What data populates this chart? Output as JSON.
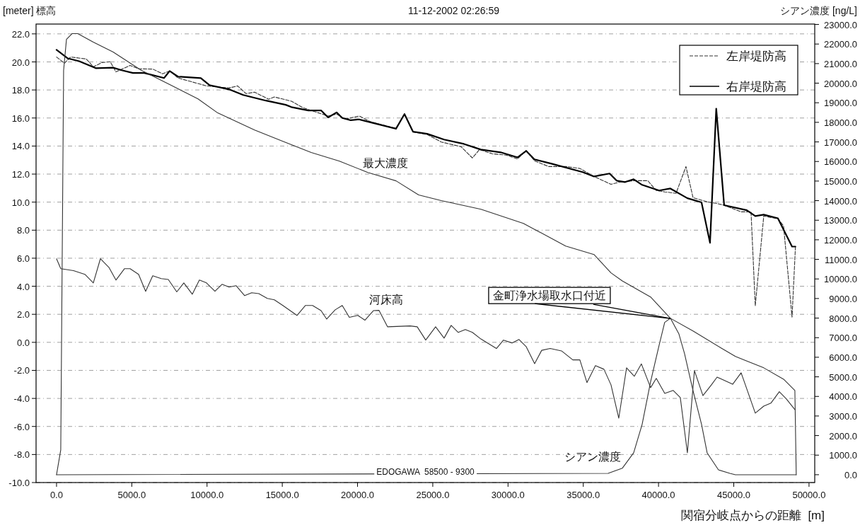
{
  "chart_data": {
    "type": "line",
    "title": "11-12-2002 02:26:59",
    "xlabel": "関宿分岐点からの距離  [m]",
    "ylabel": "[meter] 標高",
    "y2label": "シアン濃度 [ng/L]",
    "xlim": [
      -1360,
      50380
    ],
    "ylim": [
      -10,
      22.7
    ],
    "y2lim": [
      -400,
      23020
    ],
    "xticks": [
      {
        "value": 0,
        "label": "0.0"
      },
      {
        "value": 5000,
        "label": "5000.0"
      },
      {
        "value": 10000,
        "label": "10000.0"
      },
      {
        "value": 15000,
        "label": "15000.0"
      },
      {
        "value": 20000,
        "label": "20000.0"
      },
      {
        "value": 25000,
        "label": "25000.0"
      },
      {
        "value": 30000,
        "label": "30000.0"
      },
      {
        "value": 35000,
        "label": "35000.0"
      },
      {
        "value": 40000,
        "label": "40000.0"
      },
      {
        "value": 45000,
        "label": "45000.0"
      },
      {
        "value": 50000,
        "label": "50000.0"
      }
    ],
    "yticks": [
      {
        "value": -10,
        "label": "-10.0"
      },
      {
        "value": -8,
        "label": "-8.0"
      },
      {
        "value": -6,
        "label": "-6.0"
      },
      {
        "value": -4,
        "label": "-4.0"
      },
      {
        "value": -2,
        "label": "-2.0"
      },
      {
        "value": 0,
        "label": "0.0"
      },
      {
        "value": 2,
        "label": "2.0"
      },
      {
        "value": 4,
        "label": "4.0"
      },
      {
        "value": 6,
        "label": "6.0"
      },
      {
        "value": 8,
        "label": "8.0"
      },
      {
        "value": 10,
        "label": "10.0"
      },
      {
        "value": 12,
        "label": "12.0"
      },
      {
        "value": 14,
        "label": "14.0"
      },
      {
        "value": 16,
        "label": "16.0"
      },
      {
        "value": 18,
        "label": "18.0"
      },
      {
        "value": 20,
        "label": "20.0"
      },
      {
        "value": 22,
        "label": "22.0"
      }
    ],
    "y2ticks": [
      {
        "value": 0,
        "label": "0.0"
      },
      {
        "value": 1000,
        "label": "1000.0"
      },
      {
        "value": 2000,
        "label": "2000.0"
      },
      {
        "value": 3000,
        "label": "3000.0"
      },
      {
        "value": 4000,
        "label": "4000.0"
      },
      {
        "value": 5000,
        "label": "5000.0"
      },
      {
        "value": 6000,
        "label": "6000.0"
      },
      {
        "value": 7000,
        "label": "7000.0"
      },
      {
        "value": 8000,
        "label": "8000.0"
      },
      {
        "value": 9000,
        "label": "9000.0"
      },
      {
        "value": 10000,
        "label": "10000.0"
      },
      {
        "value": 11000,
        "label": "11000.0"
      },
      {
        "value": 12000,
        "label": "12000.0"
      },
      {
        "value": 13000,
        "label": "13000.0"
      },
      {
        "value": 14000,
        "label": "14000.0"
      },
      {
        "value": 15000,
        "label": "15000.0"
      },
      {
        "value": 16000,
        "label": "16000.0"
      },
      {
        "value": 17000,
        "label": "17000.0"
      },
      {
        "value": 18000,
        "label": "18000.0"
      },
      {
        "value": 19000,
        "label": "19000.0"
      },
      {
        "value": 20000,
        "label": "20000.0"
      },
      {
        "value": 21000,
        "label": "21000.0"
      },
      {
        "value": 22000,
        "label": "22000.0"
      },
      {
        "value": 23000,
        "label": "23000.0"
      }
    ],
    "grid": "y",
    "legend": "top right",
    "series": [
      {
        "name": "左岸堤防高",
        "color": "#333333",
        "line_style": "dashed",
        "x": [
          0,
          526,
          940,
          1974,
          2444,
          3008,
          3571,
          3947,
          4887,
          5451,
          6391,
          7049,
          7519,
          8083,
          9962,
          11466,
          12030,
          12594,
          13158,
          14098,
          14474,
          15602,
          16353,
          16917,
          18045,
          18609,
          19173,
          20113,
          20865,
          22556,
          23120,
          23684,
          24624,
          25564,
          26880,
          27632,
          28102,
          28947,
          29887,
          30639,
          31203,
          31767,
          32707,
          33835,
          34774,
          35714,
          36842,
          37406,
          38346,
          39286,
          39850,
          40414,
          41165,
          41823,
          42293,
          43233,
          43797,
          44361,
          45489,
          46147,
          46429,
          46992,
          47932,
          48308,
          48872,
          49098
        ],
        "values": [
          20.35,
          19.91,
          20.35,
          20.21,
          19.65,
          19.95,
          20.01,
          19.29,
          19.75,
          19.51,
          19.49,
          19.15,
          19.35,
          18.85,
          18.29,
          18.14,
          18.29,
          17.74,
          17.84,
          17.34,
          17.5,
          17.2,
          16.74,
          16.54,
          16.14,
          16.28,
          15.92,
          16.14,
          15.73,
          15.27,
          16.28,
          14.99,
          14.83,
          14.29,
          13.95,
          13.15,
          13.75,
          13.45,
          13.35,
          13.08,
          13.69,
          12.94,
          12.54,
          12.54,
          12.4,
          11.83,
          11.27,
          11.43,
          11.53,
          11.53,
          10.83,
          10.73,
          10.63,
          12.54,
          10.32,
          10.02,
          9.92,
          9.78,
          9.31,
          9.31,
          2.6,
          9.01,
          8.81,
          8.31,
          1.8,
          6.8
        ]
      },
      {
        "name": "右岸堤防高",
        "color": "#000000",
        "line_style": "solid",
        "x": [
          0,
          752,
          1504,
          2632,
          3759,
          4323,
          5075,
          5827,
          7143,
          7519,
          8083,
          9586,
          10150,
          11466,
          12406,
          13910,
          15226,
          15602,
          16729,
          17575,
          18045,
          18609,
          18985,
          19549,
          20113,
          20865,
          22556,
          23120,
          23684,
          24624,
          25752,
          27068,
          28195,
          29511,
          30639,
          31203,
          31767,
          32895,
          34962,
          35714,
          36748,
          37218,
          37782,
          38346,
          38910,
          40038,
          40789,
          41917,
          42857,
          43421,
          43835,
          44361,
          45865,
          46429,
          46992,
          47932,
          48872,
          49098
        ],
        "values": [
          20.86,
          20.25,
          20.05,
          19.55,
          19.59,
          19.41,
          19.21,
          19.21,
          18.85,
          19.35,
          18.95,
          18.85,
          18.35,
          18.04,
          17.64,
          17.24,
          16.94,
          16.78,
          16.54,
          16.54,
          16.04,
          16.4,
          16.0,
          15.84,
          15.9,
          15.69,
          15.23,
          16.28,
          15.03,
          14.87,
          14.46,
          14.15,
          13.75,
          13.55,
          13.19,
          13.65,
          13.04,
          12.74,
          12.14,
          11.83,
          12.04,
          11.53,
          11.43,
          11.63,
          11.23,
          10.83,
          10.97,
          10.28,
          9.98,
          7.1,
          16.67,
          9.78,
          9.42,
          9.01,
          9.11,
          8.85,
          6.83,
          6.83
        ]
      },
      {
        "name": "最大濃度",
        "color": "#333333",
        "axis": "y2",
        "x": [
          0,
          280,
          470,
          660,
          1030,
          1410,
          2440,
          3760,
          5640,
          7520,
          9400,
          10710,
          13160,
          15040,
          16920,
          18800,
          20680,
          22560,
          24060,
          25560,
          28200,
          31020,
          33830,
          35710,
          36840,
          37590,
          39470,
          40790,
          42290,
          44170,
          45110,
          46990,
          48310,
          49060,
          49150
        ],
        "values": [
          0,
          1270,
          20650,
          22240,
          22530,
          22530,
          22100,
          21590,
          20650,
          19930,
          19200,
          18480,
          17610,
          17030,
          16460,
          16020,
          15440,
          15010,
          14290,
          14000,
          13560,
          12840,
          11680,
          11250,
          10310,
          9900,
          9080,
          7990,
          7340,
          6470,
          6040,
          5460,
          4880,
          4300,
          0
        ]
      },
      {
        "name": "河床高",
        "color": "#333333",
        "x": [
          0,
          282,
          1128,
          1880,
          2444,
          2914,
          3477,
          3947,
          4511,
          4887,
          5451,
          5921,
          6391,
          6955,
          7425,
          7989,
          8459,
          9023,
          9492,
          9962,
          10526,
          10996,
          11466,
          11936,
          12500,
          12970,
          13440,
          14004,
          14474,
          15038,
          15977,
          16541,
          17011,
          17575,
          17951,
          18515,
          18985,
          19455,
          20019,
          20489,
          21053,
          21429,
          21992,
          23496,
          23966,
          24530,
          25188,
          25752,
          26222,
          26692,
          27162,
          27632,
          28195,
          29229,
          29699,
          30263,
          30733,
          31203,
          31767,
          32237,
          32801,
          33553,
          34305,
          34774,
          35244,
          35808,
          36372,
          36842,
          37359,
          37876,
          38393,
          38863,
          39474,
          39850,
          40414,
          40977,
          41447,
          41917,
          42387,
          42951,
          43515,
          43891,
          44925,
          45489,
          46429,
          46992,
          47462,
          48026,
          48496,
          49060
        ],
        "values": [
          5.96,
          5.25,
          5.11,
          4.85,
          4.24,
          5.96,
          5.35,
          4.44,
          5.25,
          5.25,
          4.85,
          3.64,
          4.75,
          4.55,
          4.48,
          3.6,
          4.24,
          3.43,
          4.44,
          4.24,
          3.64,
          4.14,
          3.94,
          4.04,
          3.33,
          3.54,
          3.47,
          3.13,
          3.03,
          2.63,
          1.92,
          2.63,
          2.63,
          2.26,
          1.66,
          2.32,
          2.63,
          1.78,
          1.92,
          1.58,
          2.26,
          2.28,
          1.11,
          1.17,
          1.11,
          0.16,
          1.11,
          0.3,
          1.21,
          0.71,
          0.91,
          0.71,
          0.24,
          -0.44,
          0.16,
          -0.04,
          0.2,
          -0.3,
          -1.52,
          -0.57,
          -0.44,
          -0.61,
          -1.25,
          -1.25,
          -2.87,
          -1.66,
          -1.92,
          -3.03,
          -5.41,
          -1.82,
          -2.42,
          -1.54,
          -3.23,
          -2.57,
          -3.64,
          -3.43,
          -3.94,
          -7.88,
          -2.02,
          -3.8,
          -3.03,
          -2.48,
          -2.99,
          -2.17,
          -5.05,
          -4.55,
          -4.34,
          -3.52,
          -4.04,
          -4.8
        ]
      },
      {
        "name": "シアン濃度",
        "color": "#333333",
        "axis": "y2",
        "x": [
          0,
          36650,
          37590,
          38350,
          38910,
          39470,
          40040,
          40410,
          40790,
          41350,
          41730,
          42290,
          42860,
          43230,
          43980,
          44740,
          45110,
          49150
        ],
        "values": [
          0,
          70,
          330,
          1120,
          2570,
          4740,
          6620,
          7780,
          7990,
          7200,
          6180,
          4300,
          2570,
          1120,
          250,
          70,
          0,
          0
        ]
      }
    ],
    "annotations": [
      "EDOGAWA  58500 - 9300",
      {
        "text": "金町浄水場取水口付近",
        "x": 40790,
        "y": 1.7
      }
    ]
  }
}
